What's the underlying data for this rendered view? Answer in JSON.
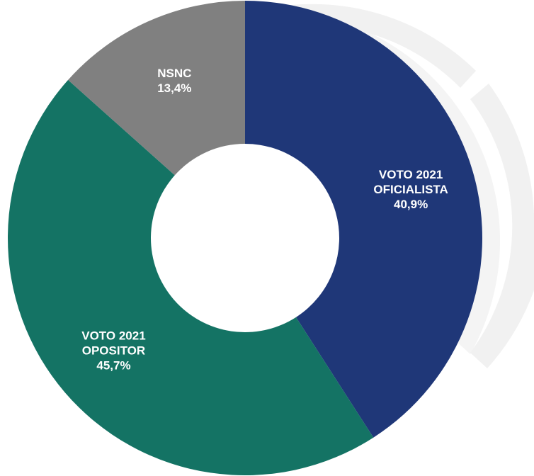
{
  "chart_data": {
    "type": "pie",
    "variant": "donut",
    "start_angle_deg": 0,
    "direction": "clockwise",
    "title": "",
    "legend": "none",
    "slices": [
      {
        "label_lines": [
          "VOTO 2021",
          "OFICIALISTA"
        ],
        "value": 40.9,
        "value_label": "40,9%",
        "color": "#1F3778"
      },
      {
        "label_lines": [
          "VOTO 2021",
          "OPOSITOR"
        ],
        "value": 45.7,
        "value_label": "45,7%",
        "color": "#147364"
      },
      {
        "label_lines": [
          "NSNC"
        ],
        "value": 13.4,
        "value_label": "13,4%",
        "color": "#808080"
      }
    ],
    "label_color": "#FFFFFF",
    "watermark_color": "#F1F1F1"
  }
}
